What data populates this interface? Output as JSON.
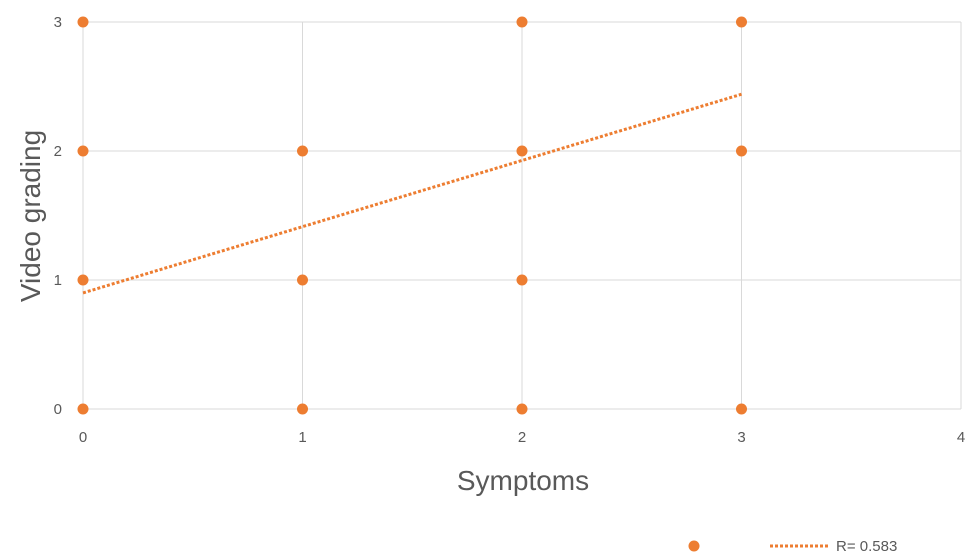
{
  "chart_data": {
    "type": "scatter",
    "title": "",
    "xlabel": "Symptoms",
    "ylabel": "Video grading",
    "xlim": [
      0,
      4
    ],
    "ylim": [
      0,
      3
    ],
    "xticks": [
      "0",
      "1",
      "2",
      "3",
      "4"
    ],
    "yticks": [
      "0",
      "1",
      "2",
      "3"
    ],
    "grid": true,
    "legend_position": "bottom-right",
    "colors": {
      "marker": "#ed7d31",
      "trendline": "#ed7d31",
      "grid": "#d9d9d9",
      "text": "#595959"
    },
    "series": [
      {
        "points": [
          {
            "x": 0,
            "y": 3
          },
          {
            "x": 2,
            "y": 3
          },
          {
            "x": 3,
            "y": 3
          },
          {
            "x": 0,
            "y": 2
          },
          {
            "x": 1,
            "y": 2
          },
          {
            "x": 2,
            "y": 2
          },
          {
            "x": 3,
            "y": 2
          },
          {
            "x": 0,
            "y": 1
          },
          {
            "x": 1,
            "y": 1
          },
          {
            "x": 2,
            "y": 1
          },
          {
            "x": 0,
            "y": 0
          },
          {
            "x": 1,
            "y": 0
          },
          {
            "x": 2,
            "y": 0
          },
          {
            "x": 3,
            "y": 0
          }
        ]
      }
    ],
    "trendline": {
      "type": "linear",
      "start": {
        "x": 0,
        "y": 0.9
      },
      "end": {
        "x": 3,
        "y": 2.44
      },
      "label": "R= 0.583"
    }
  }
}
